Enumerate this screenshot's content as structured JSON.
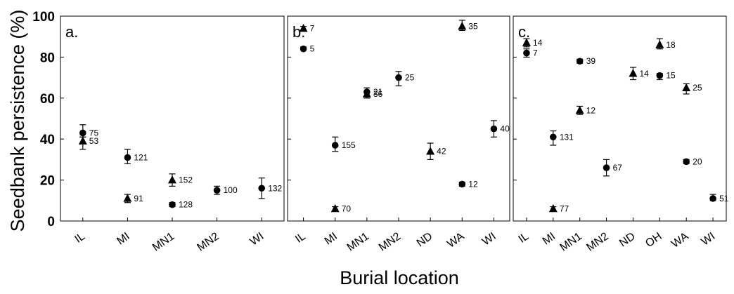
{
  "chart_data": {
    "type": "scatter",
    "ylabel": "Seedbank persistence (%)",
    "xlabel": "Burial location",
    "ylim": [
      0,
      100
    ],
    "yticks": [
      0,
      20,
      40,
      60,
      80,
      100
    ],
    "legend": "none",
    "grid": false,
    "panels": [
      {
        "panel_label": "a.",
        "categories": [
          "IL",
          "MI",
          "MN1",
          "MN2",
          "WI"
        ],
        "points": [
          {
            "category": "IL",
            "marker": "circle",
            "value": 43,
            "err": [
              41,
              47
            ],
            "n": "75"
          },
          {
            "category": "IL",
            "marker": "triangle",
            "value": 39,
            "err": [
              35,
              41
            ],
            "n": "53"
          },
          {
            "category": "MI",
            "marker": "circle",
            "value": 31,
            "err": [
              28,
              35
            ],
            "n": "121"
          },
          {
            "category": "MI",
            "marker": "triangle",
            "value": 11,
            "err": [
              9,
              13
            ],
            "n": "91"
          },
          {
            "category": "MN1",
            "marker": "triangle",
            "value": 20,
            "err": [
              17,
              23
            ],
            "n": "152"
          },
          {
            "category": "MN1",
            "marker": "circle",
            "value": 8,
            "err": [
              7,
              9
            ],
            "n": "128"
          },
          {
            "category": "MN2",
            "marker": "circle",
            "value": 15,
            "err": [
              13,
              17
            ],
            "n": "100"
          },
          {
            "category": "WI",
            "marker": "circle",
            "value": 16,
            "err": [
              11,
              21
            ],
            "n": "132"
          }
        ]
      },
      {
        "panel_label": "b.",
        "categories": [
          "IL",
          "MI",
          "MN1",
          "MN2",
          "ND",
          "WA",
          "WI"
        ],
        "points": [
          {
            "category": "IL",
            "marker": "triangle",
            "value": 94,
            "err": [
              93,
              95
            ],
            "n": "7"
          },
          {
            "category": "IL",
            "marker": "circle",
            "value": 84,
            "err": [
              84,
              85
            ],
            "n": "5"
          },
          {
            "category": "MI",
            "marker": "circle",
            "value": 37,
            "err": [
              34,
              41
            ],
            "n": "155"
          },
          {
            "category": "MI",
            "marker": "triangle",
            "value": 6,
            "err": [
              5,
              7
            ],
            "n": "70"
          },
          {
            "category": "MN1",
            "marker": "circle",
            "value": 63,
            "err": [
              61,
              65
            ],
            "n": "21"
          },
          {
            "category": "MN1",
            "marker": "triangle",
            "value": 62,
            "err": [
              60,
              63
            ],
            "n": "36"
          },
          {
            "category": "MN2",
            "marker": "circle",
            "value": 70,
            "err": [
              66,
              73
            ],
            "n": "25"
          },
          {
            "category": "ND",
            "marker": "triangle",
            "value": 34,
            "err": [
              30,
              38
            ],
            "n": "42"
          },
          {
            "category": "WA",
            "marker": "triangle",
            "value": 95,
            "err": [
              93,
              98
            ],
            "n": "35"
          },
          {
            "category": "WA",
            "marker": "circle",
            "value": 18,
            "err": [
              17,
              19
            ],
            "n": "12"
          },
          {
            "category": "WI",
            "marker": "circle",
            "value": 45,
            "err": [
              41,
              49
            ],
            "n": "40"
          }
        ]
      },
      {
        "panel_label": "c.",
        "categories": [
          "IL",
          "MI",
          "MN1",
          "MN2",
          "ND",
          "OH",
          "WA",
          "WI"
        ],
        "points": [
          {
            "category": "IL",
            "marker": "triangle",
            "value": 87,
            "err": [
              85,
              89
            ],
            "n": "14"
          },
          {
            "category": "IL",
            "marker": "circle",
            "value": 82,
            "err": [
              80,
              84
            ],
            "n": "7"
          },
          {
            "category": "MI",
            "marker": "circle",
            "value": 41,
            "err": [
              37,
              44
            ],
            "n": "131"
          },
          {
            "category": "MI",
            "marker": "triangle",
            "value": 6,
            "err": [
              5,
              7
            ],
            "n": "77"
          },
          {
            "category": "MN1",
            "marker": "circle",
            "value": 78,
            "err": [
              77,
              79
            ],
            "n": "39"
          },
          {
            "category": "MN1",
            "marker": "triangle",
            "value": 54,
            "err": [
              52,
              56
            ],
            "n": "12"
          },
          {
            "category": "MN2",
            "marker": "circle",
            "value": 26,
            "err": [
              22,
              30
            ],
            "n": "67"
          },
          {
            "category": "ND",
            "marker": "triangle",
            "value": 72,
            "err": [
              69,
              75
            ],
            "n": "14"
          },
          {
            "category": "OH",
            "marker": "triangle",
            "value": 86,
            "err": [
              84,
              89
            ],
            "n": "18"
          },
          {
            "category": "OH",
            "marker": "circle",
            "value": 71,
            "err": [
              69,
              72
            ],
            "n": "15"
          },
          {
            "category": "WA",
            "marker": "triangle",
            "value": 65,
            "err": [
              62,
              67
            ],
            "n": "25"
          },
          {
            "category": "WA",
            "marker": "circle",
            "value": 29,
            "err": [
              28,
              30
            ],
            "n": "20"
          },
          {
            "category": "WI",
            "marker": "circle",
            "value": 11,
            "err": [
              10,
              13
            ],
            "n": "51"
          }
        ]
      }
    ]
  }
}
